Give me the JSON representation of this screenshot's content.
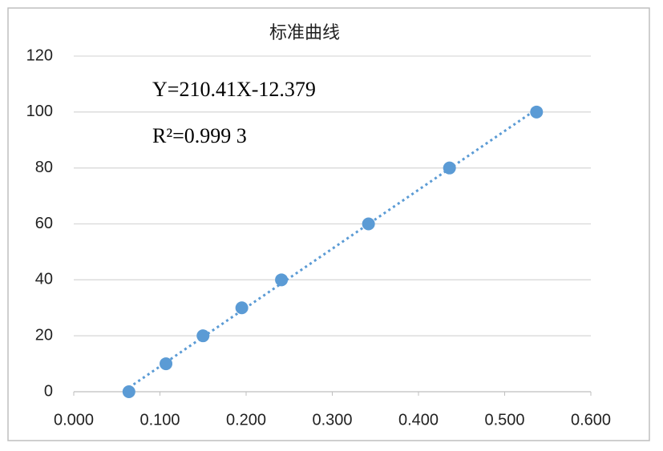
{
  "chart_data": {
    "type": "scatter",
    "title": "标准曲线",
    "annotations": [
      "Y=210.41X-12.379",
      "R²=0.999 3"
    ],
    "series": [
      {
        "color": "#5b9bd5",
        "x": [
          0.064,
          0.107,
          0.15,
          0.195,
          0.241,
          0.342,
          0.436,
          0.537
        ],
        "values": [
          0,
          10,
          20,
          30,
          40,
          60,
          80,
          100
        ]
      }
    ],
    "trendline": {
      "style": "dotted",
      "color": "#5b9bd5"
    },
    "xlim": [
      0,
      0.6
    ],
    "xticks": [
      {
        "value": 0,
        "label": "0.000"
      },
      {
        "value": 0.1,
        "label": "0.100"
      },
      {
        "value": 0.2,
        "label": "0.200"
      },
      {
        "value": 0.3,
        "label": "0.300"
      },
      {
        "value": 0.4,
        "label": "0.400"
      },
      {
        "value": 0.5,
        "label": "0.500"
      },
      {
        "value": 0.6,
        "label": "0.600"
      }
    ],
    "ylim": [
      0,
      120
    ],
    "yticks": [
      0,
      20,
      40,
      60,
      80,
      100,
      120
    ],
    "grid": true
  }
}
